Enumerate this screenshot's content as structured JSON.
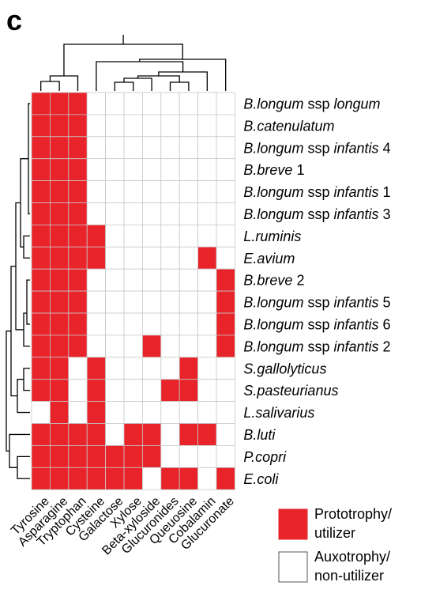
{
  "panel_letter": "c",
  "chart_data": {
    "type": "heatmap",
    "columns": [
      "Tyrosine",
      "Asparagine",
      "Tryptophan",
      "Cysteine",
      "Galactose",
      "Xylose",
      "Beta-xyloside",
      "Glucuronides",
      "Queuosine",
      "Cobalamin",
      "Glucuronate"
    ],
    "rows": [
      {
        "parts": [
          {
            "t": "B.longum",
            "i": true
          },
          {
            "t": " ssp ",
            "i": false
          },
          {
            "t": "longum",
            "i": true
          }
        ]
      },
      {
        "parts": [
          {
            "t": "B.catenulatum",
            "i": true
          }
        ]
      },
      {
        "parts": [
          {
            "t": "B.longum",
            "i": true
          },
          {
            "t": " ssp ",
            "i": false
          },
          {
            "t": "infantis",
            "i": true
          },
          {
            "t": " 4",
            "i": false
          }
        ]
      },
      {
        "parts": [
          {
            "t": "B.breve",
            "i": true
          },
          {
            "t": " 1",
            "i": false
          }
        ]
      },
      {
        "parts": [
          {
            "t": "B.longum",
            "i": true
          },
          {
            "t": " ssp ",
            "i": false
          },
          {
            "t": "infantis",
            "i": true
          },
          {
            "t": " 1",
            "i": false
          }
        ]
      },
      {
        "parts": [
          {
            "t": "B.longum",
            "i": true
          },
          {
            "t": " ssp ",
            "i": false
          },
          {
            "t": "infantis",
            "i": true
          },
          {
            "t": " 3",
            "i": false
          }
        ]
      },
      {
        "parts": [
          {
            "t": "L.ruminis",
            "i": true
          }
        ]
      },
      {
        "parts": [
          {
            "t": "E.avium",
            "i": true
          }
        ]
      },
      {
        "parts": [
          {
            "t": "B.breve",
            "i": true
          },
          {
            "t": " 2",
            "i": false
          }
        ]
      },
      {
        "parts": [
          {
            "t": "B.longum",
            "i": true
          },
          {
            "t": " ssp ",
            "i": false
          },
          {
            "t": "infantis",
            "i": true
          },
          {
            "t": " 5",
            "i": false
          }
        ]
      },
      {
        "parts": [
          {
            "t": "B.longum",
            "i": true
          },
          {
            "t": " ssp ",
            "i": false
          },
          {
            "t": "infantis",
            "i": true
          },
          {
            "t": " 6",
            "i": false
          }
        ]
      },
      {
        "parts": [
          {
            "t": "B.longum",
            "i": true
          },
          {
            "t": " ssp ",
            "i": false
          },
          {
            "t": "infantis",
            "i": true
          },
          {
            "t": " 2",
            "i": false
          }
        ]
      },
      {
        "parts": [
          {
            "t": "S.gallolyticus",
            "i": true
          }
        ]
      },
      {
        "parts": [
          {
            "t": "S.pasteurianus",
            "i": true
          }
        ]
      },
      {
        "parts": [
          {
            "t": "L.salivarius",
            "i": true
          }
        ]
      },
      {
        "parts": [
          {
            "t": "B.luti",
            "i": true
          }
        ]
      },
      {
        "parts": [
          {
            "t": "P.copri",
            "i": true
          }
        ]
      },
      {
        "parts": [
          {
            "t": "E.coli",
            "i": true
          }
        ]
      }
    ],
    "values": [
      [
        1,
        1,
        1,
        0,
        0,
        0,
        0,
        0,
        0,
        0,
        0
      ],
      [
        1,
        1,
        1,
        0,
        0,
        0,
        0,
        0,
        0,
        0,
        0
      ],
      [
        1,
        1,
        1,
        0,
        0,
        0,
        0,
        0,
        0,
        0,
        0
      ],
      [
        1,
        1,
        1,
        0,
        0,
        0,
        0,
        0,
        0,
        0,
        0
      ],
      [
        1,
        1,
        1,
        0,
        0,
        0,
        0,
        0,
        0,
        0,
        0
      ],
      [
        1,
        1,
        1,
        0,
        0,
        0,
        0,
        0,
        0,
        0,
        0
      ],
      [
        1,
        1,
        1,
        1,
        0,
        0,
        0,
        0,
        0,
        0,
        0
      ],
      [
        1,
        1,
        1,
        1,
        0,
        0,
        0,
        0,
        0,
        1,
        0
      ],
      [
        1,
        1,
        1,
        0,
        0,
        0,
        0,
        0,
        0,
        0,
        1
      ],
      [
        1,
        1,
        1,
        0,
        0,
        0,
        0,
        0,
        0,
        0,
        1
      ],
      [
        1,
        1,
        1,
        0,
        0,
        0,
        0,
        0,
        0,
        0,
        1
      ],
      [
        1,
        1,
        1,
        0,
        0,
        0,
        1,
        0,
        0,
        0,
        1
      ],
      [
        1,
        1,
        0,
        1,
        0,
        0,
        0,
        0,
        1,
        0,
        0
      ],
      [
        1,
        1,
        0,
        1,
        0,
        0,
        0,
        1,
        1,
        0,
        0
      ],
      [
        0,
        1,
        0,
        1,
        0,
        0,
        0,
        0,
        0,
        0,
        0
      ],
      [
        1,
        1,
        1,
        1,
        0,
        1,
        1,
        0,
        1,
        1,
        0
      ],
      [
        1,
        1,
        1,
        1,
        1,
        1,
        1,
        0,
        0,
        0,
        0
      ],
      [
        1,
        1,
        1,
        1,
        1,
        1,
        0,
        1,
        1,
        0,
        1
      ]
    ],
    "legend": [
      {
        "label_line1": "Prototrophy/",
        "label_line2": "utilizer",
        "value": 1
      },
      {
        "label_line1": "Auxotrophy/",
        "label_line2": "non-utilizer",
        "value": 0
      }
    ],
    "colors": {
      "positive": "#e8232a",
      "negative": "#ffffff",
      "cell_border": "#c8c8c8",
      "dendrogram": "#000000"
    }
  }
}
